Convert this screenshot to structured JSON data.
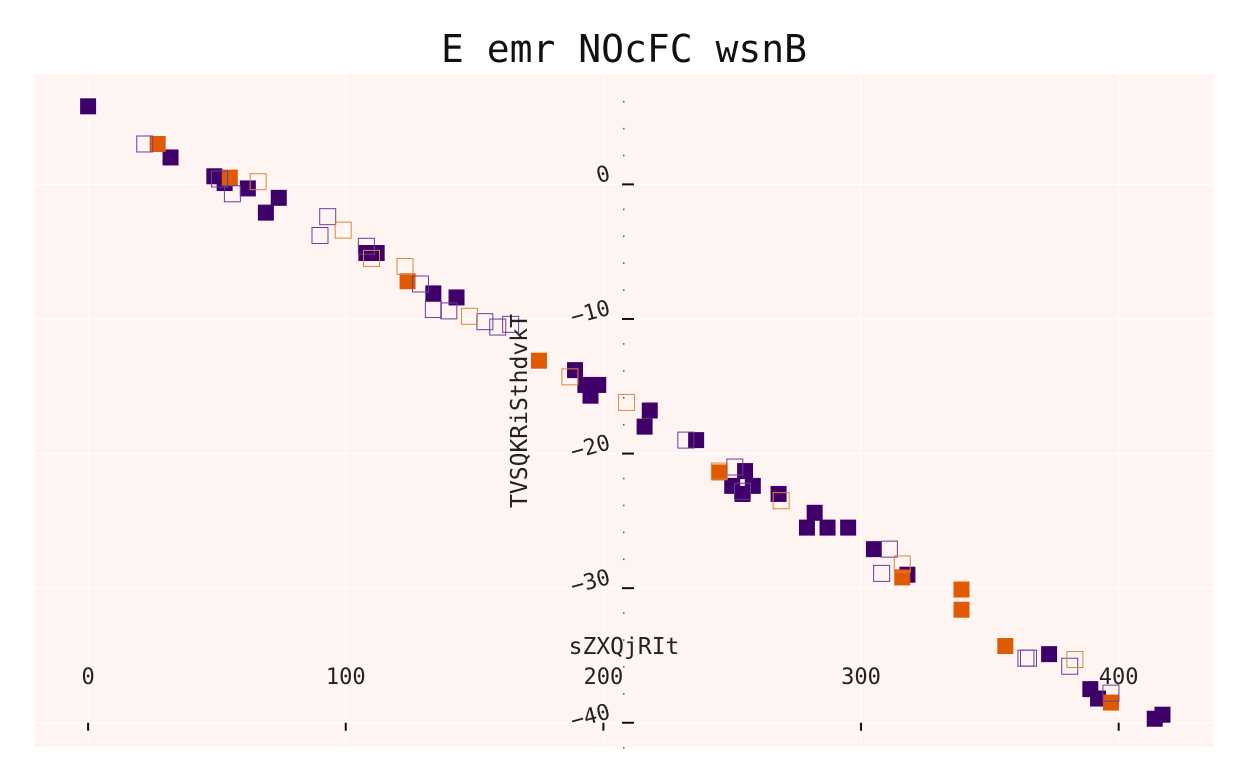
{
  "chart_data": {
    "type": "scatter",
    "title": "E emr NOcFC wsnB",
    "xlabel": "sZXQjRIt",
    "ylabel": "TVSQKRiSthdvkT",
    "xlim": [
      -21,
      437
    ],
    "ylim": [
      -41.8,
      8.2
    ],
    "x_ticks": [
      0,
      100,
      200,
      300,
      400
    ],
    "y_ticks": [
      0,
      -10,
      -20,
      -30,
      -40
    ],
    "x_tick_labels": [
      "0",
      "100",
      "200",
      "300",
      "400"
    ],
    "y_tick_labels": [
      "0",
      "−10",
      "−20",
      "−30",
      "−40"
    ],
    "grid": true,
    "legend": "none",
    "colors": {
      "background": "#fef5f3",
      "grid": "#ffffff",
      "dark": "#3f0069",
      "orange": "#e05a06",
      "hollow_dark": "#6a3d99",
      "hollow_orange": "#d9883a"
    },
    "series": [
      {
        "style": "filled-dark",
        "points": [
          [
            0,
            5.8
          ],
          [
            32,
            2
          ],
          [
            49,
            0.6
          ],
          [
            53,
            0.1
          ],
          [
            62,
            -0.3
          ],
          [
            69,
            -2.1
          ],
          [
            74,
            -1
          ],
          [
            108,
            -5.1
          ],
          [
            112,
            -5.1
          ],
          [
            134,
            -8.1
          ],
          [
            143,
            -8.4
          ],
          [
            189,
            -13.8
          ],
          [
            193,
            -14.9
          ],
          [
            195,
            -15.7
          ],
          [
            198,
            -14.9
          ],
          [
            216,
            -18
          ],
          [
            218,
            -16.8
          ],
          [
            236,
            -19
          ],
          [
            250,
            -22.4
          ],
          [
            254,
            -23
          ],
          [
            255,
            -21.3
          ],
          [
            258,
            -22.4
          ],
          [
            268,
            -23
          ],
          [
            279,
            -25.5
          ],
          [
            282,
            -24.4
          ],
          [
            287,
            -25.5
          ],
          [
            295,
            -25.5
          ],
          [
            305,
            -27.1
          ],
          [
            318,
            -29
          ],
          [
            373,
            -34.9
          ],
          [
            389,
            -37.5
          ],
          [
            392,
            -38.2
          ],
          [
            414,
            -39.7
          ],
          [
            417,
            -39.4
          ]
        ]
      },
      {
        "style": "filled-orange",
        "points": [
          [
            27,
            3
          ],
          [
            55,
            0.5
          ],
          [
            124,
            -7.2
          ],
          [
            175,
            -13.1
          ],
          [
            245,
            -21.4
          ],
          [
            316,
            -29.2
          ],
          [
            339,
            -30.1
          ],
          [
            339,
            -31.6
          ],
          [
            356,
            -34.3
          ],
          [
            397,
            -38.5
          ]
        ]
      },
      {
        "style": "hollow-dark",
        "points": [
          [
            22,
            3
          ],
          [
            51,
            0.4
          ],
          [
            56,
            -0.7
          ],
          [
            93,
            -2.4
          ],
          [
            90,
            -3.8
          ],
          [
            108,
            -4.6
          ],
          [
            129,
            -7.4
          ],
          [
            134,
            -9.3
          ],
          [
            140,
            -9.4
          ],
          [
            154,
            -10.2
          ],
          [
            159,
            -10.6
          ],
          [
            164,
            -10.4
          ],
          [
            232,
            -19
          ],
          [
            254,
            -22.8
          ],
          [
            251,
            -21
          ],
          [
            308,
            -28.9
          ],
          [
            311,
            -27.1
          ],
          [
            364,
            -35.2
          ],
          [
            365,
            -35.2
          ],
          [
            381,
            -35.8
          ],
          [
            397,
            -37.8
          ]
        ]
      },
      {
        "style": "hollow-orange",
        "points": [
          [
            66,
            0.2
          ],
          [
            99,
            -3.4
          ],
          [
            110,
            -5.5
          ],
          [
            123,
            -6.1
          ],
          [
            148,
            -9.8
          ],
          [
            187,
            -14.3
          ],
          [
            245,
            -21.3
          ],
          [
            269,
            -23.5
          ],
          [
            316,
            -28.2
          ],
          [
            383,
            -35.3
          ],
          [
            209,
            -16.2
          ]
        ]
      }
    ]
  }
}
